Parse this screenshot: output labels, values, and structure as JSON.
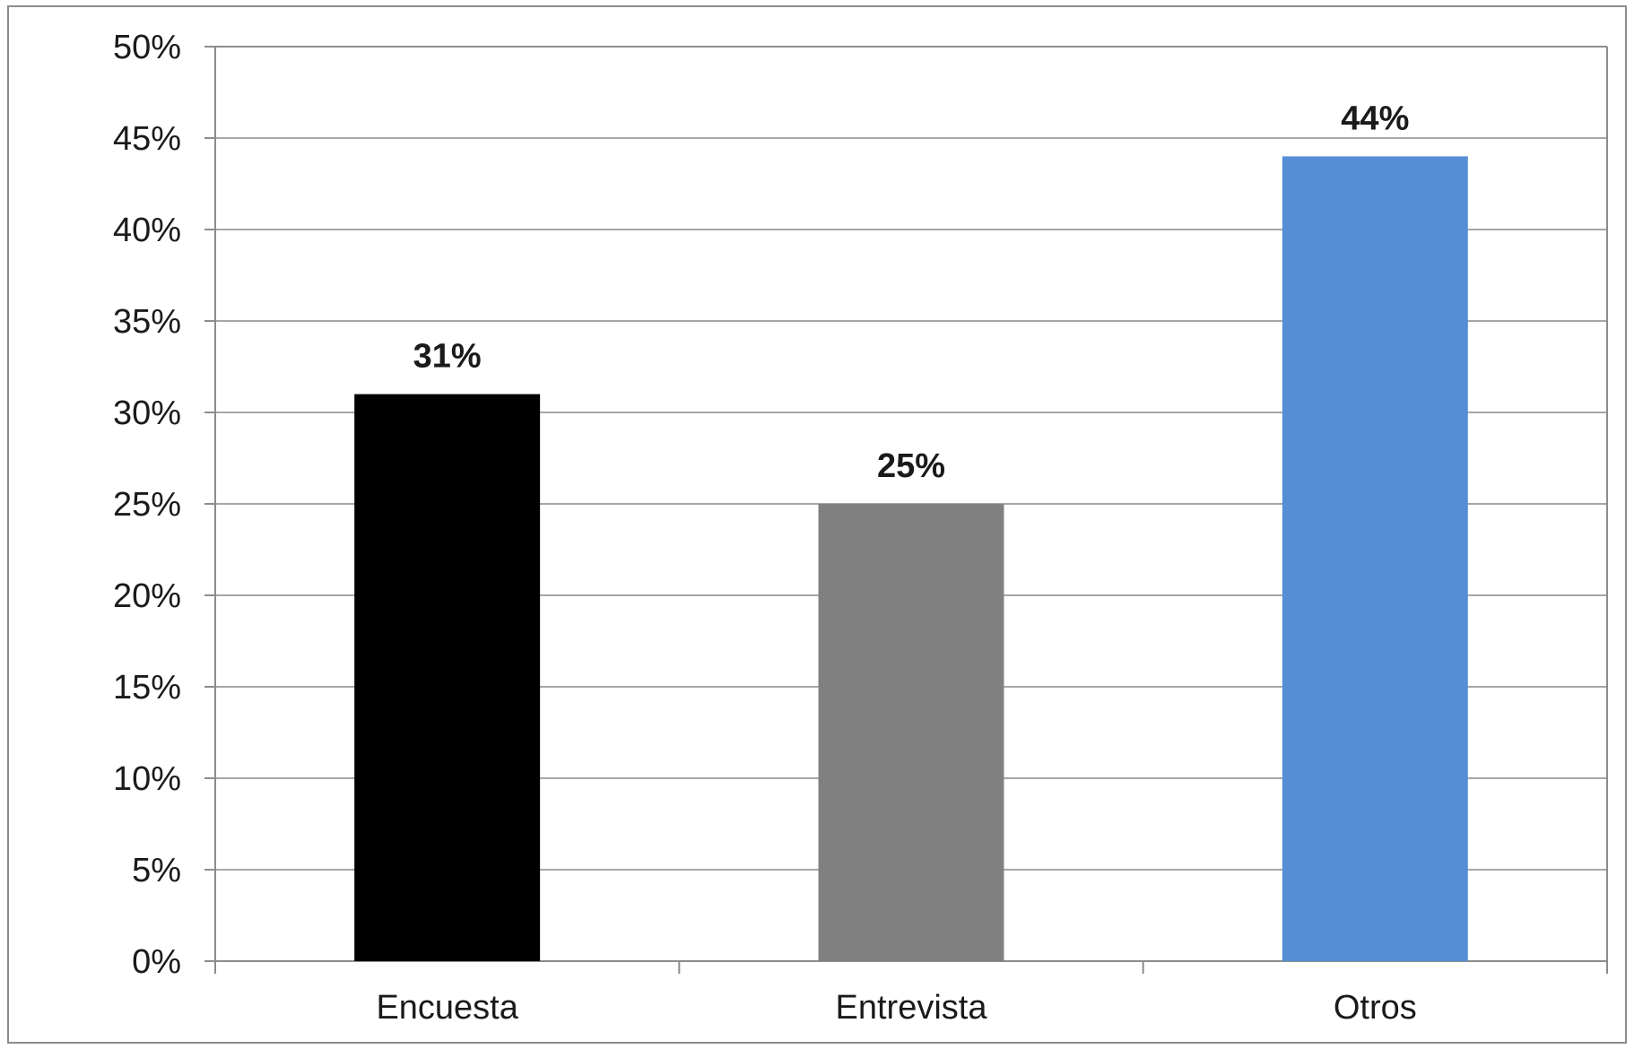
{
  "chart_data": {
    "type": "bar",
    "title": "",
    "xlabel": "",
    "ylabel": "",
    "categories": [
      "Encuesta",
      "Entrevista",
      "Otros"
    ],
    "values": [
      31,
      25,
      44
    ],
    "value_labels": [
      "31%",
      "25%",
      "44%"
    ],
    "bar_colors": [
      "#000000",
      "#808080",
      "#558ed5"
    ],
    "ylim": [
      0,
      50
    ],
    "yticks": [
      0,
      5,
      10,
      15,
      20,
      25,
      30,
      35,
      40,
      45,
      50
    ],
    "ytick_labels": [
      "0%",
      "5%",
      "10%",
      "15%",
      "20%",
      "25%",
      "30%",
      "35%",
      "40%",
      "45%",
      "50%"
    ],
    "grid": true,
    "legend": "none",
    "gridline_color": "#a6a6a6",
    "axis_color": "#8c8c8c"
  }
}
